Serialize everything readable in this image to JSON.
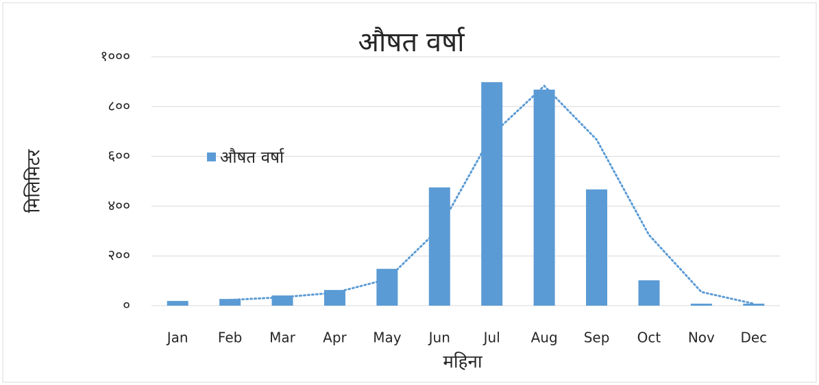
{
  "chart_data": {
    "type": "bar",
    "title": "औषत वर्षा",
    "x_label": "महिना",
    "y_label": "मिलिमिटर",
    "categories": [
      "Jan",
      "Feb",
      "Mar",
      "Apr",
      "May",
      "Jun",
      "Jul",
      "Aug",
      "Sep",
      "Oct",
      "Nov",
      "Dec"
    ],
    "series": [
      {
        "name": "औषत वर्षा",
        "color": "#5b9bd5",
        "values": [
          19,
          27,
          41,
          63,
          148,
          475,
          898,
          868,
          467,
          102,
          8,
          8
        ]
      }
    ],
    "trend": {
      "color": "#5b9bd5",
      "values": [
        null,
        23,
        34,
        52,
        106,
        311,
        686,
        883,
        667,
        284,
        55,
        8
      ]
    },
    "ylim": [
      0,
      1000
    ],
    "yticks": [
      {
        "value": 0,
        "label": "०"
      },
      {
        "value": 200,
        "label": "२००"
      },
      {
        "value": 400,
        "label": "४००"
      },
      {
        "value": 600,
        "label": "६००"
      },
      {
        "value": 800,
        "label": "८००"
      },
      {
        "value": 1000,
        "label": "१०००"
      }
    ],
    "grid": true,
    "legend": "left"
  }
}
